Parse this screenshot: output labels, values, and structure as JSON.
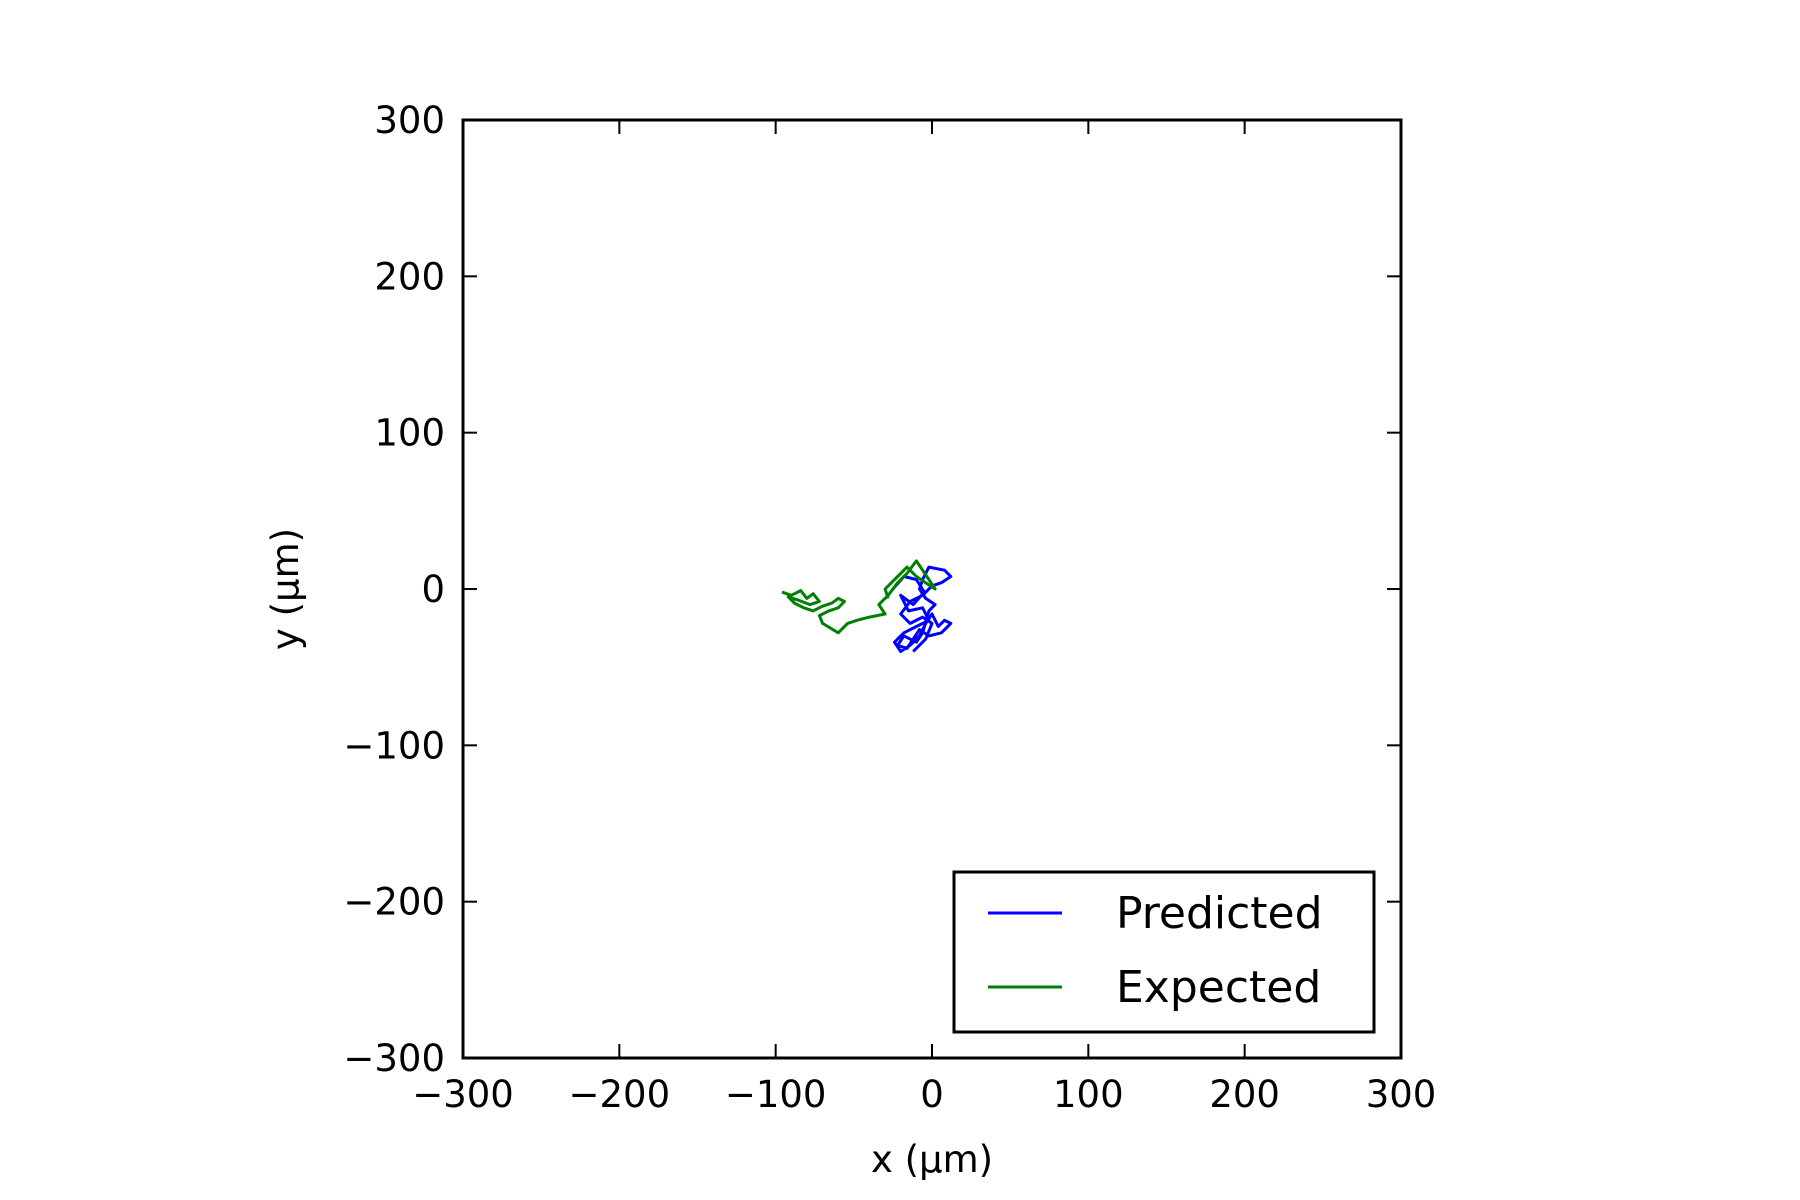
{
  "chart_data": {
    "type": "line",
    "xlabel": "x (µm)",
    "ylabel": "y (µm)",
    "xlim": [
      -300,
      300
    ],
    "ylim": [
      -300,
      300
    ],
    "xticks": [
      -300,
      -200,
      -100,
      0,
      100,
      200,
      300
    ],
    "yticks": [
      -300,
      -200,
      -100,
      0,
      100,
      200,
      300
    ],
    "xtick_labels": [
      "−300",
      "−200",
      "−100",
      "0",
      "100",
      "200",
      "300"
    ],
    "ytick_labels": [
      "−300",
      "−200",
      "−100",
      "0",
      "100",
      "200",
      "300"
    ],
    "grid": false,
    "legend_position": "lower-right",
    "series": [
      {
        "name": "Predicted",
        "color": "#0000ff",
        "points": [
          [
            -25,
            0
          ],
          [
            -18,
            8
          ],
          [
            -10,
            6
          ],
          [
            -5,
            -2
          ],
          [
            -12,
            -10
          ],
          [
            -20,
            -4
          ],
          [
            -15,
            -14
          ],
          [
            -6,
            -12
          ],
          [
            -2,
            -20
          ],
          [
            -10,
            -24
          ],
          [
            -18,
            -28
          ],
          [
            -24,
            -34
          ],
          [
            -20,
            -40
          ],
          [
            -14,
            -36
          ],
          [
            -8,
            -30
          ],
          [
            -4,
            -22
          ],
          [
            0,
            -16
          ],
          [
            4,
            -24
          ],
          [
            8,
            -20
          ],
          [
            12,
            -22
          ],
          [
            6,
            -28
          ],
          [
            -2,
            -30
          ],
          [
            -8,
            -26
          ],
          [
            -12,
            -32
          ],
          [
            -16,
            -38
          ],
          [
            -22,
            -36
          ],
          [
            -18,
            -30
          ],
          [
            -10,
            -34
          ],
          [
            -6,
            -28
          ],
          [
            -2,
            -14
          ],
          [
            2,
            -10
          ],
          [
            -4,
            -6
          ],
          [
            -8,
            0
          ],
          [
            -6,
            6
          ],
          [
            -2,
            14
          ],
          [
            8,
            12
          ],
          [
            12,
            8
          ],
          [
            6,
            4
          ],
          [
            0,
            2
          ],
          [
            -6,
            -4
          ],
          [
            -14,
            -8
          ],
          [
            -20,
            -16
          ],
          [
            -14,
            -22
          ],
          [
            -6,
            -18
          ],
          [
            0,
            -22
          ],
          [
            -4,
            -32
          ],
          [
            -12,
            -40
          ]
        ]
      },
      {
        "name": "Expected",
        "color": "#008000",
        "points": [
          [
            -96,
            -2
          ],
          [
            -90,
            -4
          ],
          [
            -84,
            -1
          ],
          [
            -80,
            -6
          ],
          [
            -76,
            -3
          ],
          [
            -72,
            -8
          ],
          [
            -78,
            -10
          ],
          [
            -86,
            -7
          ],
          [
            -92,
            -5
          ],
          [
            -88,
            -9
          ],
          [
            -82,
            -12
          ],
          [
            -76,
            -14
          ],
          [
            -70,
            -11
          ],
          [
            -64,
            -9
          ],
          [
            -60,
            -6
          ],
          [
            -56,
            -8
          ],
          [
            -60,
            -12
          ],
          [
            -66,
            -14
          ],
          [
            -72,
            -17
          ],
          [
            -70,
            -22
          ],
          [
            -60,
            -28
          ],
          [
            -54,
            -22
          ],
          [
            -48,
            -20
          ],
          [
            -40,
            -18
          ],
          [
            -30,
            -16
          ],
          [
            -34,
            -10
          ],
          [
            -28,
            -4
          ],
          [
            -22,
            4
          ],
          [
            -16,
            10
          ],
          [
            -10,
            18
          ],
          [
            -6,
            12
          ],
          [
            -2,
            6
          ],
          [
            2,
            0
          ],
          [
            -4,
            4
          ],
          [
            -10,
            8
          ],
          [
            -16,
            14
          ],
          [
            -20,
            10
          ],
          [
            -26,
            4
          ],
          [
            -30,
            0
          ],
          [
            -28,
            -6
          ]
        ]
      }
    ]
  }
}
